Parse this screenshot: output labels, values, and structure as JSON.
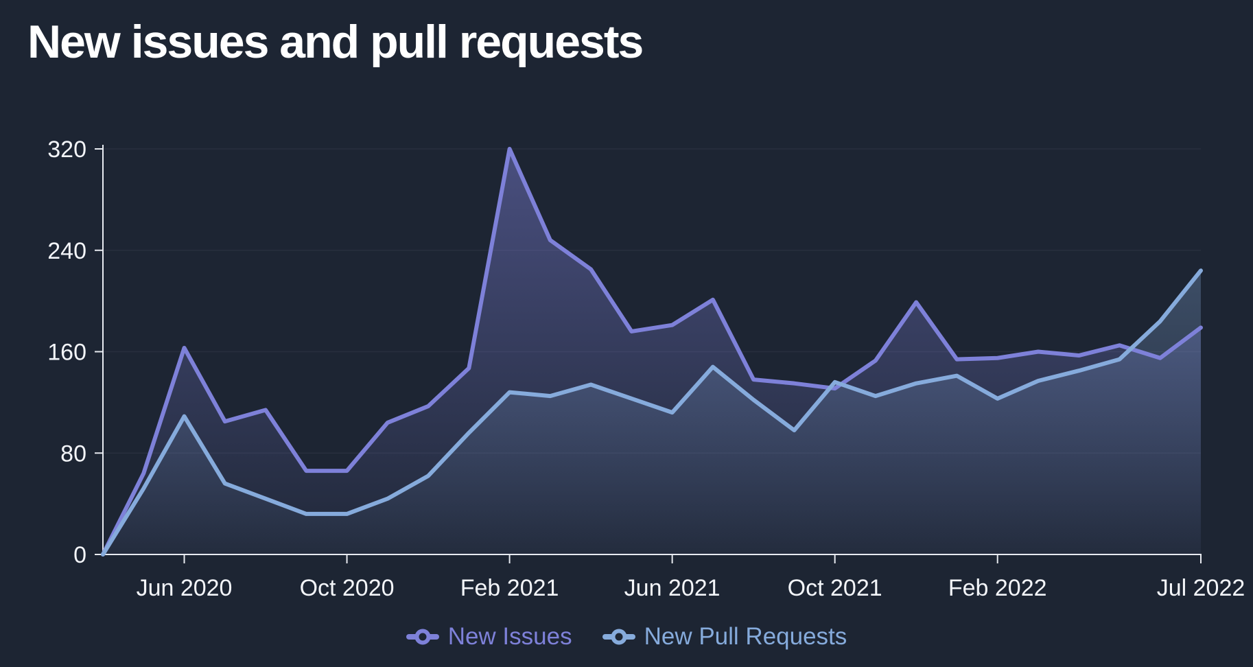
{
  "title": "New issues and pull requests",
  "colors": {
    "background": "#1d2533",
    "axis": "#e8ebf1",
    "grid": "rgba(235,240,255,0.055)",
    "tick_text": "#f3f5f9",
    "issues": "#7e81d9",
    "pull_requests": "#86abdc"
  },
  "legend": {
    "items": [
      {
        "label": "New Issues",
        "color": "#7e81d9"
      },
      {
        "label": "New Pull Requests",
        "color": "#86abdc"
      }
    ]
  },
  "chart_data": {
    "type": "area",
    "title": "New issues and pull requests",
    "xlabel": "",
    "ylabel": "",
    "x": [
      "Apr 2020",
      "May 2020",
      "Jun 2020",
      "Jul 2020",
      "Aug 2020",
      "Sep 2020",
      "Oct 2020",
      "Nov 2020",
      "Dec 2020",
      "Jan 2021",
      "Feb 2021",
      "Mar 2021",
      "Apr 2021",
      "May 2021",
      "Jun 2021",
      "Jul 2021",
      "Aug 2021",
      "Sep 2021",
      "Oct 2021",
      "Nov 2021",
      "Dec 2021",
      "Jan 2022",
      "Feb 2022",
      "Mar 2022",
      "Apr 2022",
      "May 2022",
      "Jun 2022",
      "Jul 2022"
    ],
    "series": [
      {
        "name": "New Issues",
        "color": "#7e81d9",
        "values": [
          0,
          64,
          163,
          105,
          114,
          66,
          66,
          104,
          117,
          147,
          320,
          248,
          225,
          176,
          181,
          201,
          138,
          135,
          131,
          153,
          199,
          154,
          155,
          160,
          157,
          165,
          155,
          179
        ]
      },
      {
        "name": "New Pull Requests",
        "color": "#86abdc",
        "values": [
          0,
          52,
          109,
          56,
          44,
          32,
          32,
          44,
          62,
          96,
          128,
          125,
          134,
          123,
          112,
          148,
          122,
          98,
          136,
          125,
          135,
          141,
          123,
          137,
          145,
          154,
          184,
          224
        ]
      }
    ],
    "x_tick_labels": [
      "Jun 2020",
      "Oct 2020",
      "Feb 2021",
      "Jun 2021",
      "Oct 2021",
      "Feb 2022",
      "Jul 2022"
    ],
    "y_ticks": [
      0,
      80,
      160,
      240,
      320
    ],
    "ylim": [
      0,
      320
    ],
    "grid": "horizontal",
    "legend_position": "bottom"
  }
}
